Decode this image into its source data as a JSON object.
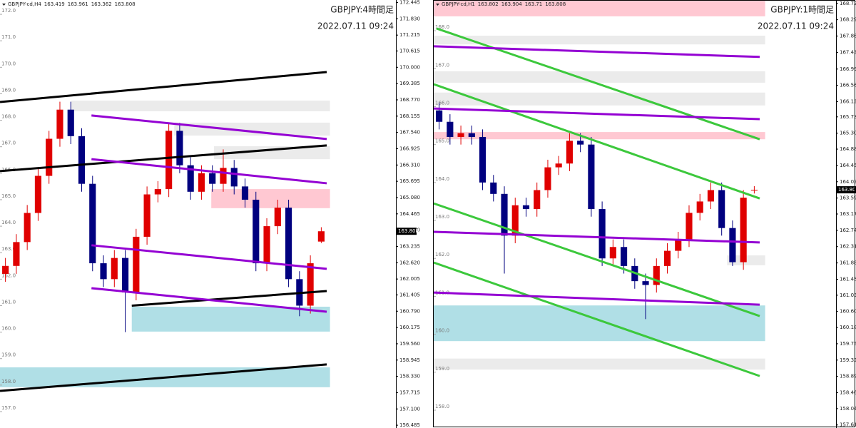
{
  "chart_data": [
    {
      "type": "candlestick",
      "symbol": "GBPJPY-cd,H4",
      "title": "GBPJPY:4時間足",
      "subtitle": "2022.07.11 09:24",
      "up_color": "#e00000",
      "down_color": "#00007f",
      "ylim": [
        156.38,
        172.54
      ],
      "yticks": [
        172.445,
        {
          "value": 171.83,
          "label": "171.830"
        },
        171.215,
        170.615,
        {
          "value": 170,
          "label": "170.000"
        },
        169.385,
        {
          "value": 168.77,
          "label": "168.770"
        },
        168.155,
        {
          "value": 167.54,
          "label": "167.540"
        },
        166.925,
        {
          "value": 166.31,
          "label": "166.310"
        },
        165.695,
        {
          "value": 165.08,
          "label": "165.080"
        },
        164.465,
        {
          "value": 163.85,
          "label": "163.850"
        },
        163.235,
        {
          "value": 162.62,
          "label": "162.620"
        },
        162.005,
        161.405,
        {
          "value": 160.79,
          "label": "160.790"
        },
        160.175,
        {
          "value": 159.56,
          "label": "159.560"
        },
        158.945,
        {
          "value": 158.33,
          "label": "158.330"
        },
        157.715,
        {
          "value": 157.1,
          "label": "157.100"
        },
        156.485
      ],
      "inner_ticks": [
        {
          "value": 172,
          "label": "172.0"
        },
        {
          "value": 171,
          "label": "171.0"
        },
        {
          "value": 170,
          "label": "170.0"
        },
        {
          "value": 169,
          "label": "169.0"
        },
        {
          "value": 168,
          "label": "168.0"
        },
        {
          "value": 167,
          "label": "167.0"
        },
        {
          "value": 166,
          "label": "166.0"
        },
        {
          "value": 165,
          "label": "165.0"
        },
        {
          "value": 164,
          "label": "164.0"
        },
        {
          "value": 163,
          "label": "163.0"
        },
        {
          "value": 162,
          "label": "162.0"
        },
        {
          "value": 161,
          "label": "161.0"
        },
        {
          "value": 160,
          "label": "160.0"
        },
        {
          "value": 159,
          "label": "159.0"
        },
        {
          "value": 158,
          "label": "158.0"
        },
        {
          "value": 157,
          "label": "157.0"
        }
      ],
      "candles": {
        "open": [
          162.2,
          162.5,
          163.4,
          164.5,
          165.9,
          167.3,
          168.4,
          167.4,
          165.6,
          162.6,
          162.0,
          162.8,
          161.5,
          163.6,
          165.2,
          165.4,
          167.6,
          166.3,
          165.3,
          166.0,
          165.6,
          166.2,
          165.5,
          165.0,
          162.6,
          164.0,
          164.7,
          162.0,
          161.0,
          163.419
        ],
        "high": [
          162.8,
          163.7,
          164.8,
          166.2,
          167.6,
          168.7,
          168.7,
          167.7,
          165.9,
          162.9,
          163.1,
          163.1,
          163.9,
          165.5,
          165.7,
          167.9,
          167.9,
          166.6,
          166.3,
          166.3,
          166.9,
          166.5,
          165.8,
          165.3,
          164.3,
          165.0,
          165.0,
          162.3,
          162.9,
          163.961
        ],
        "low": [
          161.9,
          162.2,
          163.1,
          164.2,
          165.6,
          167.0,
          167.1,
          165.3,
          162.3,
          161.7,
          161.7,
          160.0,
          161.2,
          163.3,
          164.9,
          165.1,
          166.0,
          165.0,
          165.0,
          165.3,
          165.3,
          165.2,
          164.7,
          162.3,
          162.3,
          163.7,
          161.7,
          160.6,
          160.7,
          163.362
        ],
        "close": [
          162.5,
          163.4,
          164.5,
          165.9,
          167.3,
          168.4,
          167.4,
          165.6,
          162.6,
          162.0,
          162.8,
          161.5,
          163.6,
          165.2,
          165.4,
          167.6,
          166.3,
          165.3,
          166.0,
          165.6,
          166.2,
          165.5,
          165.0,
          162.6,
          164.0,
          164.7,
          162.0,
          161.0,
          162.6,
          163.808
        ]
      },
      "zones": [
        {
          "color": "#ebebeb",
          "x": [
            6.05,
            29.8
          ],
          "y": [
            168.34,
            168.74
          ]
        },
        {
          "color": "#ebebeb",
          "x": [
            15.5,
            29.8
          ],
          "y": [
            167.42,
            167.91
          ]
        },
        {
          "color": "#ebebeb",
          "x": [
            19.15,
            29.8
          ],
          "y": [
            166.53,
            167.02
          ]
        },
        {
          "color": "#ffc8d2",
          "x": [
            18.9,
            29.8
          ],
          "y": [
            164.68,
            165.4
          ]
        },
        {
          "color": "#b0dfe6",
          "x": [
            11.6,
            29.8
          ],
          "y": [
            160.02,
            160.96
          ]
        },
        {
          "color": "#b0dfe6",
          "x": [
            -0.5,
            29.8
          ],
          "y": [
            157.92,
            158.67
          ]
        }
      ],
      "lines": [
        {
          "color": "#000000",
          "x": [
            -0.5,
            29.5
          ],
          "y": [
            168.69,
            169.82
          ]
        },
        {
          "color": "#000000",
          "x": [
            -0.5,
            29.5
          ],
          "y": [
            166.08,
            167.05
          ]
        },
        {
          "color": "#000000",
          "x": [
            11.6,
            29.5
          ],
          "y": [
            161.0,
            161.55
          ]
        },
        {
          "color": "#000000",
          "x": [
            -0.5,
            29.5
          ],
          "y": [
            157.78,
            158.78
          ]
        },
        {
          "color": "#9400d3",
          "x": [
            7.9,
            29.5
          ],
          "y": [
            168.18,
            167.29
          ]
        },
        {
          "color": "#9400d3",
          "x": [
            7.9,
            29.5
          ],
          "y": [
            166.53,
            165.62
          ]
        },
        {
          "color": "#9400d3",
          "x": [
            7.9,
            29.5
          ],
          "y": [
            163.28,
            162.39
          ]
        },
        {
          "color": "#9400d3",
          "x": [
            7.9,
            29.5
          ],
          "y": [
            161.66,
            160.77
          ]
        }
      ]
    },
    {
      "type": "candlestick",
      "symbol": "GBPJPY-cd,H1",
      "title": "GBPJPY:1時間足",
      "subtitle": "2022.07.11 09:24",
      "up_color": "#e00000",
      "down_color": "#00007f",
      "ylim": [
        157.53,
        168.81
      ],
      "yticks": [
        {
          "value": 168.72,
          "label": "168.720"
        },
        {
          "value": 168.29,
          "label": "168.290"
        },
        {
          "value": 167.86,
          "label": "167.860"
        },
        {
          "value": 167.43,
          "label": "167.430"
        },
        {
          "value": 166.99,
          "label": "166.990"
        },
        {
          "value": 166.56,
          "label": "166.560"
        },
        {
          "value": 166.13,
          "label": "166.130"
        },
        {
          "value": 165.73,
          "label": "165.730"
        },
        {
          "value": 165.3,
          "label": "165.300"
        },
        {
          "value": 164.88,
          "label": "164.880"
        },
        {
          "value": 164.45,
          "label": "164.450"
        },
        {
          "value": 164.02,
          "label": "164.020"
        },
        {
          "value": 163.59,
          "label": "163.590"
        },
        {
          "value": 163.17,
          "label": "163.170"
        },
        {
          "value": 162.74,
          "label": "162.740"
        },
        {
          "value": 162.31,
          "label": "162.310"
        },
        {
          "value": 161.88,
          "label": "161.880"
        },
        {
          "value": 161.45,
          "label": "161.450"
        },
        {
          "value": 161.03,
          "label": "161.030"
        },
        {
          "value": 160.6,
          "label": "160.600"
        },
        {
          "value": 160.18,
          "label": "160.180"
        },
        {
          "value": 159.75,
          "label": "159.750"
        },
        {
          "value": 159.32,
          "label": "159.320"
        },
        {
          "value": 158.89,
          "label": "158.890"
        },
        {
          "value": 158.46,
          "label": "158.460"
        },
        {
          "value": 158.04,
          "label": "158.040"
        },
        {
          "value": 157.61,
          "label": "157.610"
        }
      ],
      "inner_ticks": [
        {
          "value": 168,
          "label": "168.0"
        },
        {
          "value": 167,
          "label": "167.0"
        },
        {
          "value": 166,
          "label": "166.0"
        },
        {
          "value": 165,
          "label": "165.0"
        },
        {
          "value": 164,
          "label": "164.0"
        },
        {
          "value": 163,
          "label": "163.0"
        },
        {
          "value": 162,
          "label": "162.0"
        },
        {
          "value": 161,
          "label": "161.0"
        },
        {
          "value": 160,
          "label": "160.0"
        },
        {
          "value": 159,
          "label": "159.0"
        },
        {
          "value": 158,
          "label": "158.0"
        }
      ],
      "candles": {
        "open": [
          165.9,
          165.6,
          165.2,
          165.3,
          165.2,
          164.0,
          163.7,
          162.6,
          163.4,
          163.3,
          163.8,
          164.4,
          164.5,
          165.1,
          165.0,
          163.3,
          162.0,
          162.3,
          161.8,
          161.4,
          161.3,
          161.8,
          162.2,
          162.5,
          163.2,
          163.5,
          163.8,
          162.8,
          161.9,
          163.802
        ],
        "high": [
          166.1,
          165.8,
          165.5,
          165.5,
          165.4,
          164.2,
          163.9,
          163.6,
          163.6,
          164.0,
          164.6,
          164.7,
          165.3,
          165.3,
          165.2,
          163.5,
          162.5,
          162.5,
          162.0,
          161.6,
          162.0,
          162.4,
          162.7,
          163.4,
          163.7,
          164.0,
          164.0,
          163.0,
          163.8,
          163.904
        ],
        "low": [
          165.4,
          165.0,
          165.0,
          165.0,
          163.8,
          163.5,
          161.6,
          162.4,
          163.1,
          163.1,
          163.6,
          164.2,
          164.3,
          164.8,
          163.1,
          161.8,
          161.8,
          161.6,
          161.2,
          160.4,
          161.1,
          161.6,
          162.0,
          162.3,
          163.0,
          163.3,
          162.6,
          161.8,
          161.7,
          163.71
        ],
        "close": [
          165.6,
          165.2,
          165.3,
          165.2,
          164.0,
          163.7,
          162.6,
          163.4,
          163.3,
          163.8,
          164.4,
          164.5,
          165.1,
          165.0,
          163.3,
          162.0,
          162.3,
          161.8,
          161.4,
          161.3,
          161.8,
          162.2,
          162.5,
          163.2,
          163.5,
          163.8,
          162.8,
          161.9,
          163.6,
          163.808
        ]
      },
      "zones": [
        {
          "color": "#ffc8d2",
          "x": [
            -0.5,
            30
          ],
          "y": [
            168.38,
            168.81
          ]
        },
        {
          "color": "#ebebeb",
          "x": [
            -0.5,
            30
          ],
          "y": [
            167.64,
            167.87
          ]
        },
        {
          "color": "#ebebeb",
          "x": [
            -0.5,
            30
          ],
          "y": [
            166.63,
            166.93
          ]
        },
        {
          "color": "#ebebeb",
          "x": [
            -0.5,
            30
          ],
          "y": [
            166.03,
            166.37
          ]
        },
        {
          "color": "#ffc8d2",
          "x": [
            -0.5,
            30
          ],
          "y": [
            165.14,
            165.33
          ]
        },
        {
          "color": "#ebebeb",
          "x": [
            26.5,
            30
          ],
          "y": [
            161.82,
            162.08
          ]
        },
        {
          "color": "#b0dfe6",
          "x": [
            -0.5,
            30
          ],
          "y": [
            159.82,
            160.76
          ]
        },
        {
          "color": "#ebebeb",
          "x": [
            -0.5,
            30
          ],
          "y": [
            159.07,
            159.36
          ]
        }
      ],
      "lines": [
        {
          "color": "#3cc83c",
          "x": [
            -0.24,
            29.5
          ],
          "y": [
            168.06,
            165.14
          ]
        },
        {
          "color": "#3cc83c",
          "x": [
            -0.5,
            29.5
          ],
          "y": [
            166.59,
            163.58
          ]
        },
        {
          "color": "#3cc83c",
          "x": [
            -0.5,
            29.5
          ],
          "y": [
            163.45,
            160.48
          ]
        },
        {
          "color": "#3cc83c",
          "x": [
            -0.5,
            29.5
          ],
          "y": [
            161.89,
            158.9
          ]
        },
        {
          "color": "#9400d3",
          "x": [
            -0.5,
            29.5
          ],
          "y": [
            167.59,
            167.31
          ]
        },
        {
          "color": "#9400d3",
          "x": [
            -0.5,
            29.5
          ],
          "y": [
            165.95,
            165.67
          ]
        },
        {
          "color": "#9400d3",
          "x": [
            -0.5,
            29.5
          ],
          "y": [
            162.7,
            162.42
          ]
        },
        {
          "color": "#9400d3",
          "x": [
            -0.5,
            29.5
          ],
          "y": [
            161.1,
            160.78
          ]
        }
      ]
    }
  ]
}
